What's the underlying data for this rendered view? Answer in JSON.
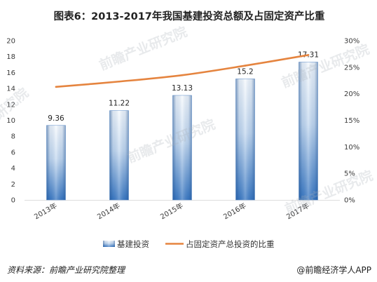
{
  "title": "图表6：2013-2017年我国基建投资总额及占固定资产比重",
  "chart_data": {
    "type": "bar",
    "categories": [
      "2013年",
      "2014年",
      "2015年",
      "2016年",
      "2017年"
    ],
    "series": [
      {
        "name": "基建投资",
        "type": "bar",
        "y_axis": "left",
        "values": [
          9.36,
          11.22,
          13.13,
          15.2,
          17.31
        ],
        "color": "#3a78c2"
      },
      {
        "name": "占固定资产总投资的比重",
        "type": "line",
        "y_axis": "right",
        "values": [
          21.3,
          22.3,
          23.5,
          25.3,
          27.3
        ],
        "color": "#e5843f"
      }
    ],
    "y_left": {
      "min": 0,
      "max": 20,
      "ticks": [
        0,
        2,
        4,
        6,
        8,
        10,
        12,
        14,
        16,
        18,
        20
      ]
    },
    "y_right": {
      "min": 0,
      "max": 30,
      "ticks": [
        "0%",
        "5%",
        "10%",
        "15%",
        "20%",
        "25%",
        "30%"
      ]
    },
    "grid": false,
    "legend": "bottom"
  },
  "source": "资料来源：前瞻产业研究院整理",
  "credit": "@前瞻经济学人APP",
  "watermark": "前瞻产业研究院"
}
